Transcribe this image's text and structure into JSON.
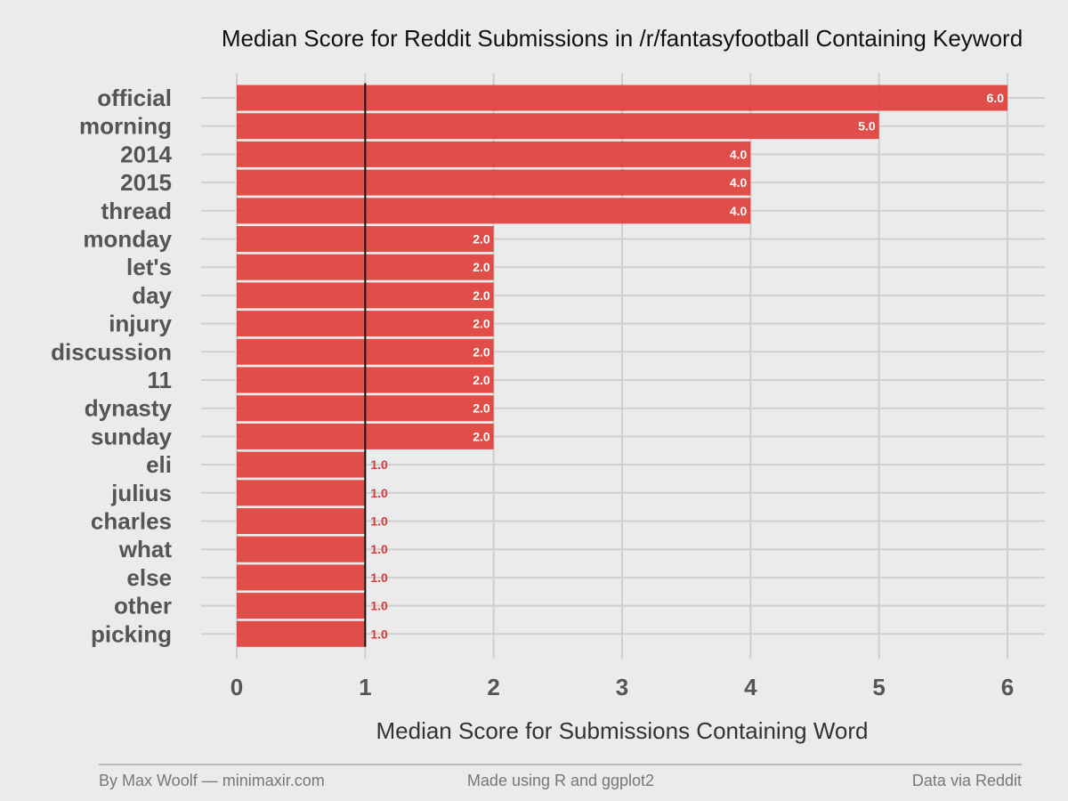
{
  "chart_data": {
    "type": "bar",
    "orientation": "horizontal",
    "title": "Median Score for Reddit Submissions in /r/fantasyfootball Containing Keyword",
    "xlabel": "Median Score for Submissions Containing Word",
    "ylabel": "",
    "categories": [
      "official",
      "morning",
      "2014",
      "2015",
      "thread",
      "monday",
      "let's",
      "day",
      "injury",
      "discussion",
      "11",
      "dynasty",
      "sunday",
      "eli",
      "julius",
      "charles",
      "what",
      "else",
      "other",
      "picking"
    ],
    "values": [
      6.0,
      5.0,
      4.0,
      4.0,
      4.0,
      2.0,
      2.0,
      2.0,
      2.0,
      2.0,
      2.0,
      2.0,
      2.0,
      1.0,
      1.0,
      1.0,
      1.0,
      1.0,
      1.0,
      1.0
    ],
    "value_labels": [
      "6.0",
      "5.0",
      "4.0",
      "4.0",
      "4.0",
      "2.0",
      "2.0",
      "2.0",
      "2.0",
      "2.0",
      "2.0",
      "2.0",
      "2.0",
      "1.0",
      "1.0",
      "1.0",
      "1.0",
      "1.0",
      "1.0",
      "1.0"
    ],
    "xlim": [
      0,
      6
    ],
    "x_ticks": [
      "0",
      "1",
      "2",
      "3",
      "4",
      "5",
      "6"
    ],
    "reference_line_x": 1,
    "grid": true,
    "bar_color": "#e0403c",
    "label_color_inside": "#ffffff",
    "label_color_outside": "#d93a36"
  },
  "footer": {
    "left": "By Max Woolf — minimaxir.com",
    "center": "Made using R and ggplot2",
    "right": "Data via Reddit"
  }
}
